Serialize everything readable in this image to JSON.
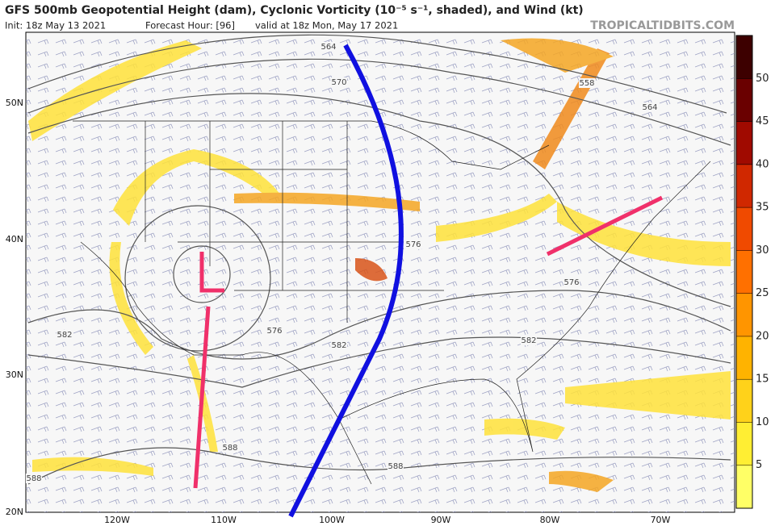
{
  "header": {
    "title": "GFS 500mb Geopotential Height (dam), Cyclonic Vorticity (10⁻⁵ s⁻¹, shaded), and Wind (kt)",
    "init": "Init: 18z May 13 2021",
    "forecast_hour": "Forecast Hour: [96]",
    "valid": "valid at 18z Mon, May 17 2021",
    "site": "TROPICALTIDBITS.COM"
  },
  "axes": {
    "lat": [
      "50N",
      "40N",
      "30N",
      "20N"
    ],
    "lon": [
      "120W",
      "110W",
      "100W",
      "90W",
      "80W",
      "70W"
    ]
  },
  "contour_labels": [
    "564",
    "570",
    "558",
    "564",
    "576",
    "576",
    "576",
    "582",
    "582",
    "582",
    "588",
    "588",
    "588"
  ],
  "colorbar": {
    "ticks": [
      5,
      10,
      15,
      20,
      25,
      30,
      35,
      40,
      45,
      50
    ]
  }
}
